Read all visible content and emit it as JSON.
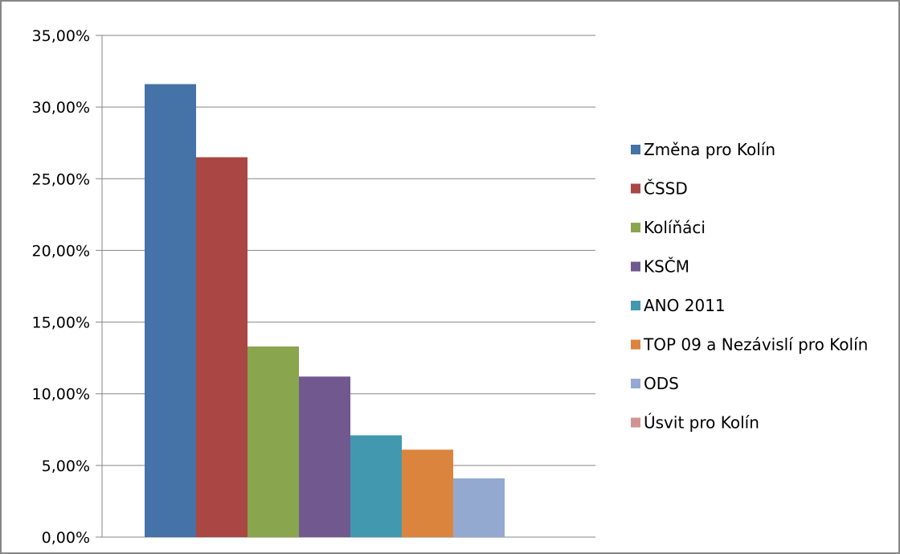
{
  "chart_data": {
    "type": "bar",
    "title": "",
    "xlabel": "",
    "ylabel": "",
    "ylim": [
      0,
      35
    ],
    "yticks": [
      {
        "value": 0,
        "label": "0,00%"
      },
      {
        "value": 5,
        "label": "5,00%"
      },
      {
        "value": 10,
        "label": "10,00%"
      },
      {
        "value": 15,
        "label": "15,00%"
      },
      {
        "value": 20,
        "label": "20,00%"
      },
      {
        "value": 25,
        "label": "25,00%"
      },
      {
        "value": 30,
        "label": "30,00%"
      },
      {
        "value": 35,
        "label": "35,00%"
      }
    ],
    "grid": true,
    "legend": "right",
    "series": [
      {
        "name": "Změna pro Kolín",
        "value": 31.6,
        "color": "#4572A7"
      },
      {
        "name": "ČSSD",
        "value": 26.5,
        "color": "#AA4643"
      },
      {
        "name": "Kolíňáci",
        "value": 13.3,
        "color": "#89A54E"
      },
      {
        "name": "KSČM",
        "value": 11.2,
        "color": "#71588F"
      },
      {
        "name": "ANO 2011",
        "value": 7.1,
        "color": "#4198AF"
      },
      {
        "name": "TOP 09 a Nezávislí pro Kolín",
        "value": 6.1,
        "color": "#DB843D"
      },
      {
        "name": "ODS",
        "value": 4.1,
        "color": "#93A9CF"
      },
      {
        "name": "Úsvit pro Kolín",
        "value": 0,
        "color": "#D19392"
      }
    ]
  }
}
